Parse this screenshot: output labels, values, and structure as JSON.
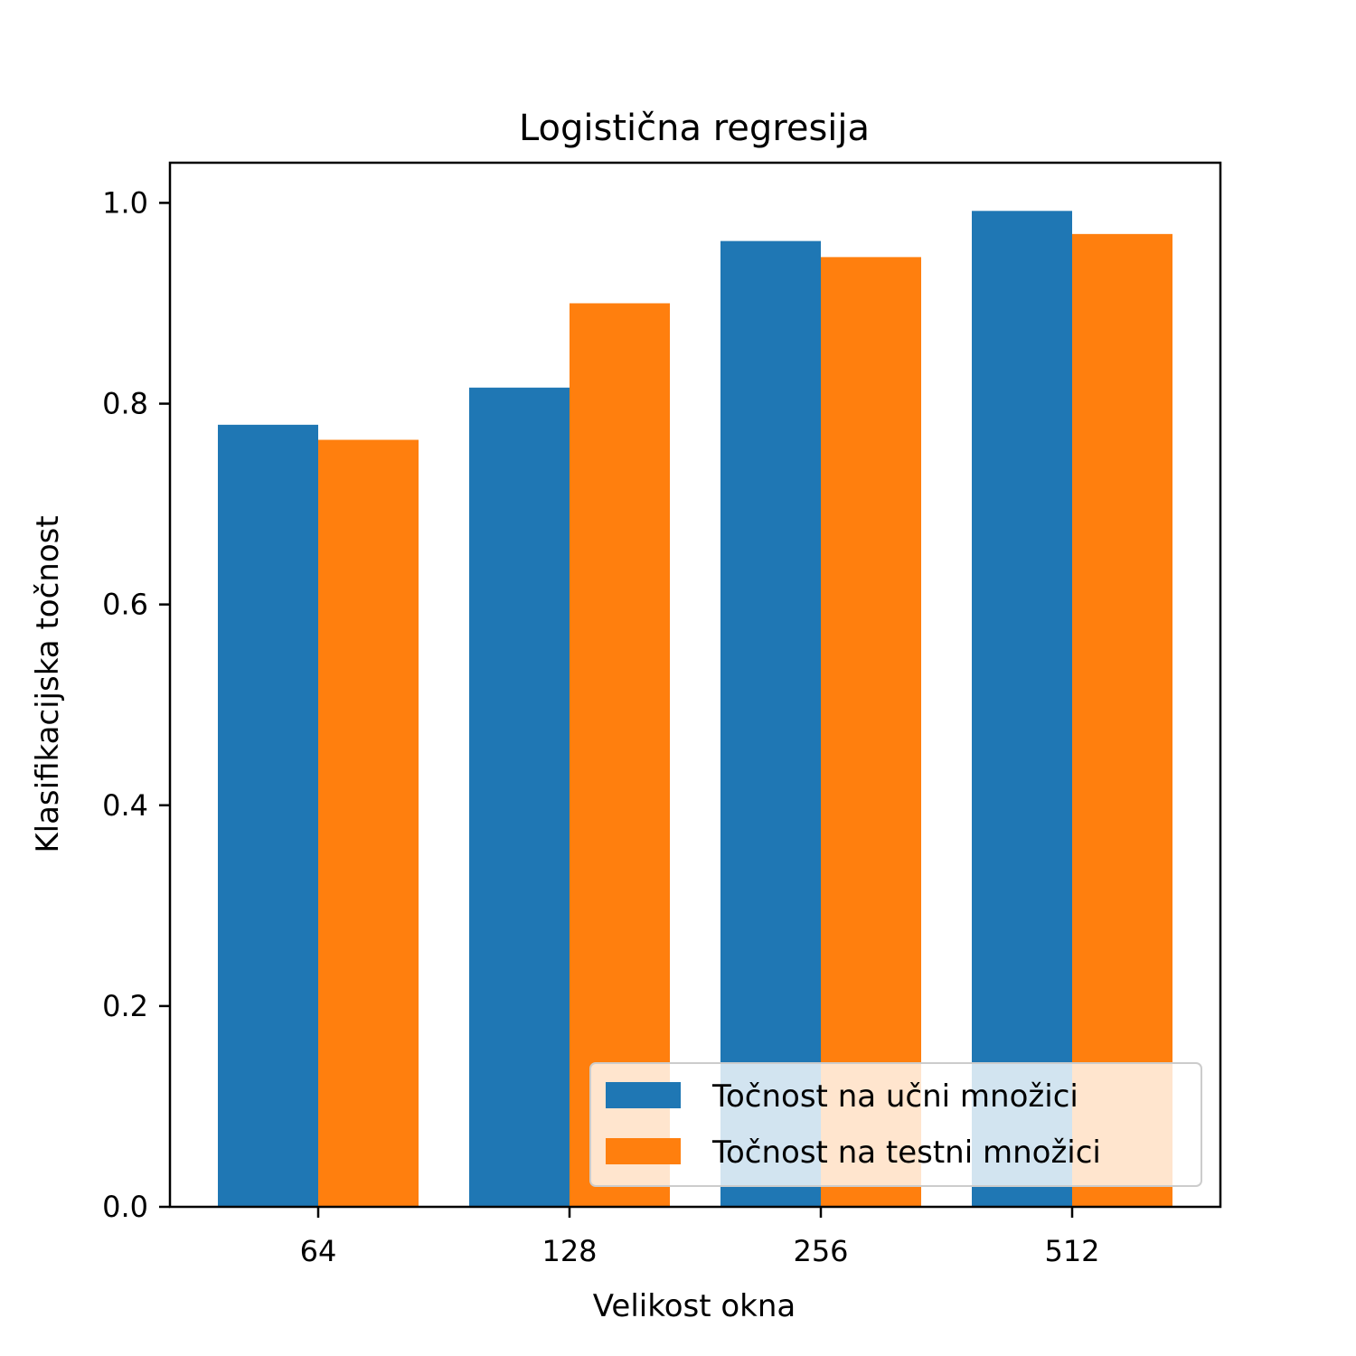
{
  "chart_data": {
    "type": "bar",
    "title": "Logistična regresija",
    "xlabel": "Velikost okna",
    "ylabel": "Klasifikacijska točnost",
    "categories": [
      "64",
      "128",
      "256",
      "512"
    ],
    "series": [
      {
        "name": "Točnost na učni množici",
        "color": "#1f77b4",
        "values": [
          0.779,
          0.816,
          0.962,
          0.992
        ]
      },
      {
        "name": "Točnost na testni množici",
        "color": "#ff7f0e",
        "values": [
          0.764,
          0.9,
          0.946,
          0.969
        ]
      }
    ],
    "ylim": [
      0,
      1.04
    ],
    "yticks": [
      0.0,
      0.2,
      0.4,
      0.6,
      0.8,
      1.0
    ],
    "ytick_labels": [
      "0.0",
      "0.2",
      "0.4",
      "0.6",
      "0.8",
      "1.0"
    ],
    "grid": false,
    "legend_position": "lower-right"
  }
}
